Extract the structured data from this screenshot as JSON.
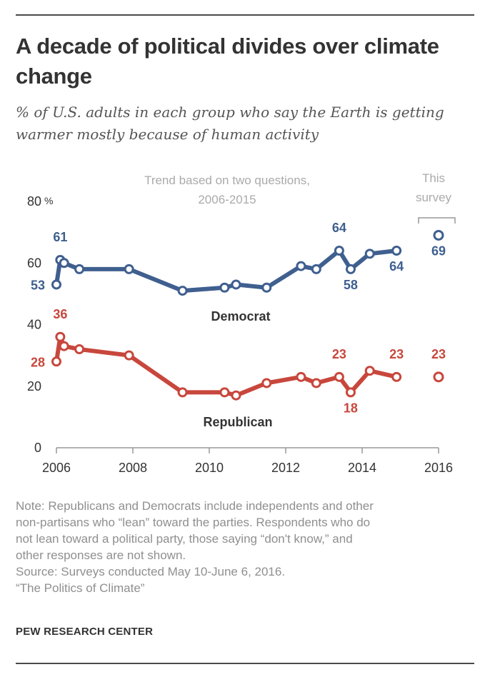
{
  "title": "A decade of political divides over climate change",
  "subtitle": "% of U.S. adults in each group who say the Earth is getting warmer mostly because of human activity",
  "notes": [
    "Note: Republicans and Democrats include independents and other",
    "non-partisans who “lean” toward the parties. Respondents who do",
    "not lean toward a political party, those saying “don't know,” and",
    "other responses are not shown.",
    "Source: Surveys conducted May 10-June 6, 2016.",
    "“The Politics of Climate”"
  ],
  "credit": "PEW RESEARCH CENTER",
  "colors": {
    "democrat": "#3f5f8f",
    "republican": "#c8473c",
    "annotation": "#aaaaaa",
    "axis": "#555555"
  },
  "chart_data": {
    "type": "line",
    "xlim": [
      2006,
      2016
    ],
    "ylim": [
      0,
      80
    ],
    "x_ticks": [
      2006,
      2008,
      2010,
      2012,
      2014,
      2016
    ],
    "x_tick_labels": [
      "2006",
      "2008",
      "2010",
      "2012",
      "2014",
      "2016"
    ],
    "y_ticks": [
      0,
      20,
      40,
      60,
      80
    ],
    "y_tick_labels": [
      "0",
      "20",
      "40",
      "60",
      "80"
    ],
    "y_unit": "%",
    "grid": false,
    "trend_note": [
      "Trend based on two questions,",
      "2006-2015"
    ],
    "survey_note": [
      "This",
      "survey"
    ],
    "series": [
      {
        "name": "Democrat",
        "color": "#3f5f8f",
        "trend": [
          {
            "x": 2006.0,
            "y": 53
          },
          {
            "x": 2006.1,
            "y": 61
          },
          {
            "x": 2006.2,
            "y": 60
          },
          {
            "x": 2006.6,
            "y": 58
          },
          {
            "x": 2007.9,
            "y": 58
          },
          {
            "x": 2009.3,
            "y": 51
          },
          {
            "x": 2010.4,
            "y": 52
          },
          {
            "x": 2010.7,
            "y": 53
          },
          {
            "x": 2011.5,
            "y": 52
          },
          {
            "x": 2012.4,
            "y": 59
          },
          {
            "x": 2012.8,
            "y": 58
          },
          {
            "x": 2013.4,
            "y": 64
          },
          {
            "x": 2013.7,
            "y": 58
          },
          {
            "x": 2014.2,
            "y": 63
          },
          {
            "x": 2014.9,
            "y": 64
          }
        ],
        "current": {
          "x": 2016.0,
          "y": 69
        },
        "labels": [
          {
            "text": "53",
            "x": 2006.0,
            "y": 53
          },
          {
            "text": "61",
            "x": 2006.1,
            "y": 61
          },
          {
            "text": "64",
            "x": 2013.4,
            "y": 64
          },
          {
            "text": "58",
            "x": 2013.7,
            "y": 58
          },
          {
            "text": "64",
            "x": 2014.9,
            "y": 64
          },
          {
            "text": "69",
            "x": 2016.0,
            "y": 69
          }
        ]
      },
      {
        "name": "Republican",
        "color": "#c8473c",
        "trend": [
          {
            "x": 2006.0,
            "y": 28
          },
          {
            "x": 2006.1,
            "y": 36
          },
          {
            "x": 2006.2,
            "y": 33
          },
          {
            "x": 2006.6,
            "y": 32
          },
          {
            "x": 2007.9,
            "y": 30
          },
          {
            "x": 2009.3,
            "y": 18
          },
          {
            "x": 2010.4,
            "y": 18
          },
          {
            "x": 2010.7,
            "y": 17
          },
          {
            "x": 2011.5,
            "y": 21
          },
          {
            "x": 2012.4,
            "y": 23
          },
          {
            "x": 2012.8,
            "y": 21
          },
          {
            "x": 2013.4,
            "y": 23
          },
          {
            "x": 2013.7,
            "y": 18
          },
          {
            "x": 2014.2,
            "y": 25
          },
          {
            "x": 2014.9,
            "y": 23
          }
        ],
        "current": {
          "x": 2016.0,
          "y": 23
        },
        "labels": [
          {
            "text": "28",
            "x": 2006.0,
            "y": 28
          },
          {
            "text": "36",
            "x": 2006.1,
            "y": 36
          },
          {
            "text": "23",
            "x": 2013.4,
            "y": 23
          },
          {
            "text": "18",
            "x": 2013.7,
            "y": 18
          },
          {
            "text": "23",
            "x": 2014.9,
            "y": 23
          },
          {
            "text": "23",
            "x": 2016.0,
            "y": 23
          }
        ]
      }
    ]
  }
}
